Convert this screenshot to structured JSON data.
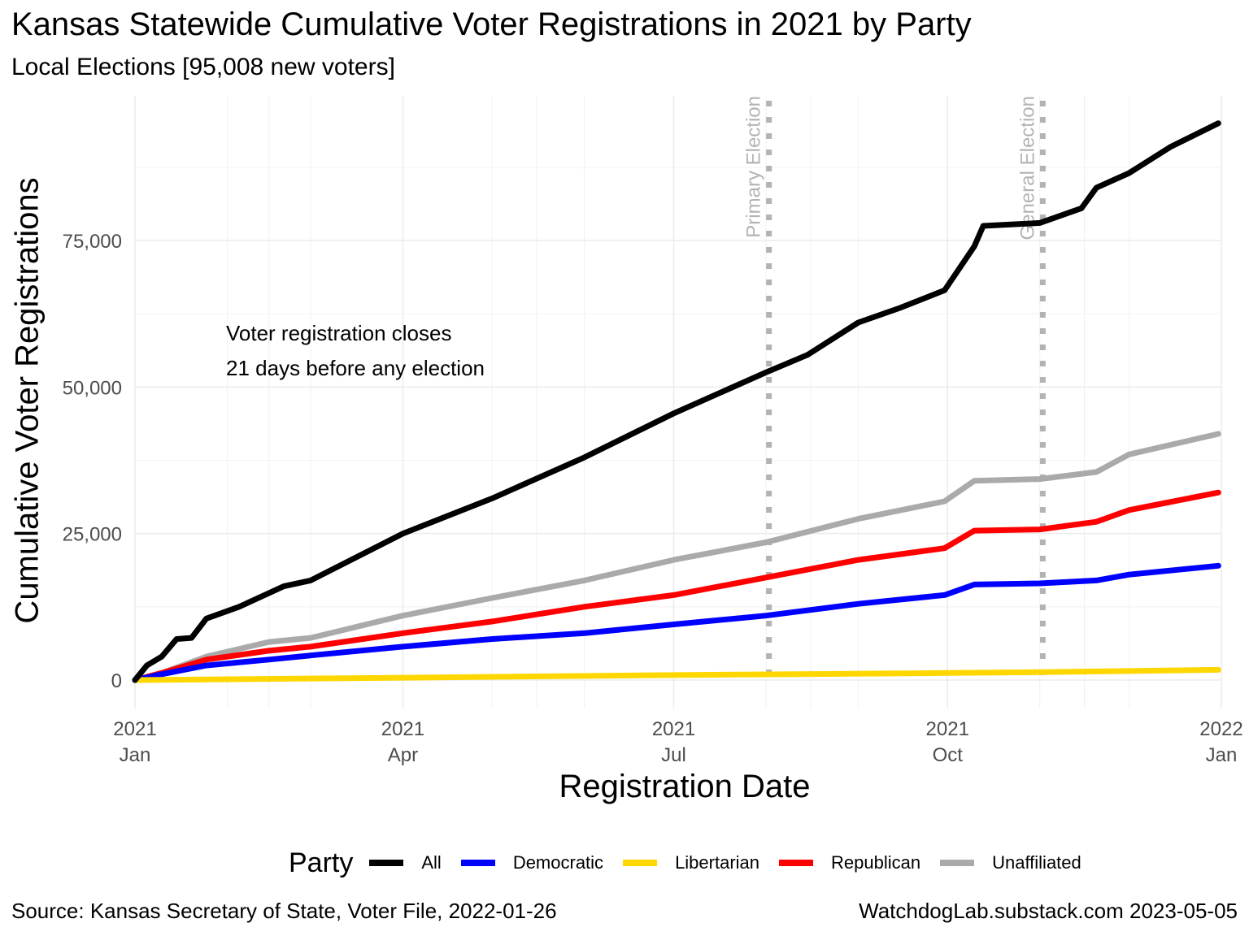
{
  "title": "Kansas Statewide Cumulative Voter Registrations in 2021 by Party",
  "subtitle": "Local Elections [95,008 new voters]",
  "source": "Source:  Kansas Secretary of State, Voter File, 2022-01-26",
  "credit": "WatchdogLab.substack.com 2023-05-05",
  "chart_data": {
    "type": "line",
    "xlabel": "Registration Date",
    "ylabel": "Cumulative Voter Registrations",
    "x_range": [
      "2021-01-01",
      "2022-01-01"
    ],
    "ylim": [
      -5000,
      100000
    ],
    "grid": true,
    "legend_position": "bottom",
    "legend_title": "Party",
    "x_ticks": [
      {
        "date": "2021-01-01",
        "year": "2021",
        "month": "Jan"
      },
      {
        "date": "2021-04-01",
        "year": "2021",
        "month": "Apr"
      },
      {
        "date": "2021-07-01",
        "year": "2021",
        "month": "Jul"
      },
      {
        "date": "2021-10-01",
        "year": "2021",
        "month": "Oct"
      },
      {
        "date": "2022-01-01",
        "year": "2022",
        "month": "Jan"
      }
    ],
    "y_ticks": [
      {
        "value": 0,
        "label": "0"
      },
      {
        "value": 25000,
        "label": "25,000"
      },
      {
        "value": 50000,
        "label": "50,000"
      },
      {
        "value": 75000,
        "label": "75,000"
      }
    ],
    "vlines": [
      {
        "date": "2021-08-02",
        "label": "Primary Election"
      },
      {
        "date": "2021-11-02",
        "label": "General Election"
      }
    ],
    "annotation": [
      "Voter registration closes",
      "21 days before any election"
    ],
    "series": [
      {
        "name": "All",
        "color": "#000000",
        "x": [
          "2021-01-01",
          "2021-01-05",
          "2021-01-10",
          "2021-01-15",
          "2021-01-20",
          "2021-01-25",
          "2021-02-05",
          "2021-02-20",
          "2021-03-01",
          "2021-04-01",
          "2021-05-01",
          "2021-06-01",
          "2021-07-01",
          "2021-08-01",
          "2021-08-15",
          "2021-09-01",
          "2021-09-15",
          "2021-09-30",
          "2021-10-10",
          "2021-10-13",
          "2021-10-25",
          "2021-11-01",
          "2021-11-15",
          "2021-11-20",
          "2021-12-01",
          "2021-12-15",
          "2021-12-31"
        ],
        "y": [
          0,
          2500,
          4000,
          7000,
          7200,
          10500,
          12500,
          16000,
          17000,
          25000,
          31000,
          38000,
          45500,
          52500,
          55500,
          61000,
          63500,
          66500,
          74000,
          77500,
          77800,
          78000,
          80500,
          84000,
          86500,
          91000,
          95008
        ]
      },
      {
        "name": "Democratic",
        "color": "#0000ff",
        "x": [
          "2021-01-01",
          "2021-01-10",
          "2021-01-25",
          "2021-02-15",
          "2021-03-01",
          "2021-04-01",
          "2021-05-01",
          "2021-06-01",
          "2021-07-01",
          "2021-08-01",
          "2021-09-01",
          "2021-09-30",
          "2021-10-10",
          "2021-11-01",
          "2021-11-20",
          "2021-12-01",
          "2021-12-31"
        ],
        "y": [
          0,
          1000,
          2500,
          3500,
          4200,
          5700,
          7000,
          8000,
          9500,
          11000,
          13000,
          14500,
          16300,
          16500,
          17000,
          18000,
          19500
        ]
      },
      {
        "name": "Libertarian",
        "color": "#ffd700",
        "x": [
          "2021-01-01",
          "2021-04-01",
          "2021-07-01",
          "2021-10-01",
          "2021-11-01",
          "2021-12-31"
        ],
        "y": [
          0,
          400,
          850,
          1200,
          1350,
          1750
        ]
      },
      {
        "name": "Republican",
        "color": "#ff0000",
        "x": [
          "2021-01-01",
          "2021-01-10",
          "2021-01-25",
          "2021-02-15",
          "2021-03-01",
          "2021-04-01",
          "2021-05-01",
          "2021-06-01",
          "2021-07-01",
          "2021-08-01",
          "2021-09-01",
          "2021-09-30",
          "2021-10-10",
          "2021-11-01",
          "2021-11-20",
          "2021-12-01",
          "2021-12-31"
        ],
        "y": [
          0,
          1200,
          3500,
          5000,
          5700,
          8000,
          10000,
          12500,
          14500,
          17500,
          20500,
          22500,
          25500,
          25700,
          27000,
          29000,
          32000
        ]
      },
      {
        "name": "Unaffiliated",
        "color": "#aaaaaa",
        "x": [
          "2021-01-01",
          "2021-01-10",
          "2021-01-25",
          "2021-02-15",
          "2021-03-01",
          "2021-04-01",
          "2021-05-01",
          "2021-06-01",
          "2021-07-01",
          "2021-08-01",
          "2021-09-01",
          "2021-09-30",
          "2021-10-10",
          "2021-11-01",
          "2021-11-20",
          "2021-12-01",
          "2021-12-31"
        ],
        "y": [
          0,
          1200,
          4000,
          6500,
          7200,
          11000,
          14000,
          17000,
          20500,
          23500,
          27500,
          30500,
          34000,
          34300,
          35500,
          38500,
          42000
        ]
      }
    ]
  }
}
